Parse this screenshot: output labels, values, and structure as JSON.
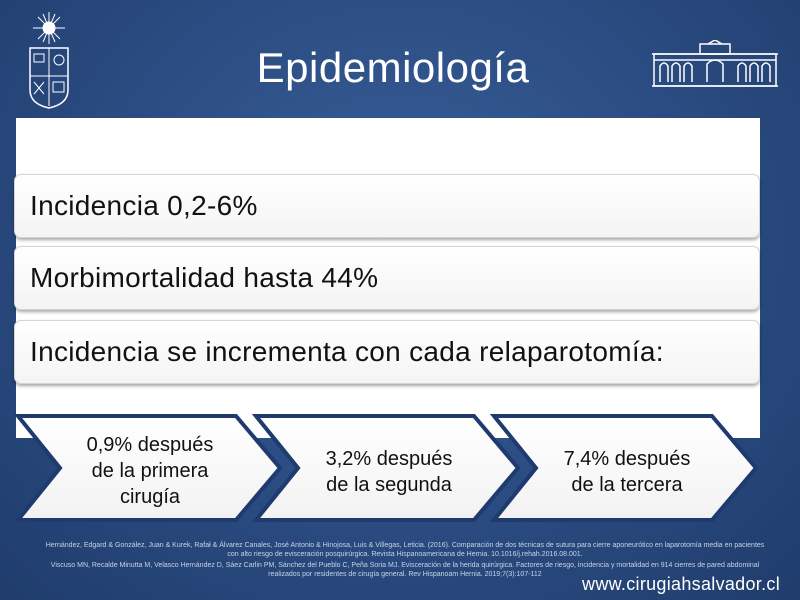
{
  "slide": {
    "title": "Epidemiología"
  },
  "bars": [
    {
      "text": "Incidencia 0,2-6%"
    },
    {
      "text": "Morbimortalidad hasta 44%"
    },
    {
      "text": "Incidencia se incrementa con cada relaparotomía:"
    }
  ],
  "chevrons": [
    {
      "lines": [
        "0,9% después",
        "de la primera",
        "cirugía"
      ]
    },
    {
      "lines": [
        "3,2% después",
        "de la segunda"
      ]
    },
    {
      "lines": [
        "7,4% después",
        "de la tercera"
      ]
    }
  ],
  "references": [
    "Hernández, Edgard & González, Juan & Kurek, Rafał & Álvarez Canales, José Antonio & Hinojosa, Luis & Villegas, Leticia. (2016). Comparación de dos técnicas de sutura para cierre aponeurótico en laparotomía media en pacientes con alto riesgo de evisceración posquirúrgica. Revista Hispanoamericana de Hernia. 10.1016/j.rehah.2016.08.001.",
    "Viscuso MN, Recalde Minutta M, Velasco Hernández D, Sáez Carlin PM, Sánchez del Pueblo C, Peña Soria MJ. Evisceración de la herida quirúrgica. Factores de riesgo, incidencia y mortalidad en 914 cierres de pared abdominal realizados por residentes de cirugía general. Rev Hispanoam Hernia. 2019;7(3):107-112"
  ],
  "footer": {
    "website": "www.cirugiahsalvador.cl"
  },
  "icons": {
    "left_logo": "university-crest-icon",
    "right_logo": "hospital-building-icon"
  },
  "colors": {
    "background": "#2d4f86",
    "chevron_border": "#1e3a6e",
    "text": "#111111"
  }
}
